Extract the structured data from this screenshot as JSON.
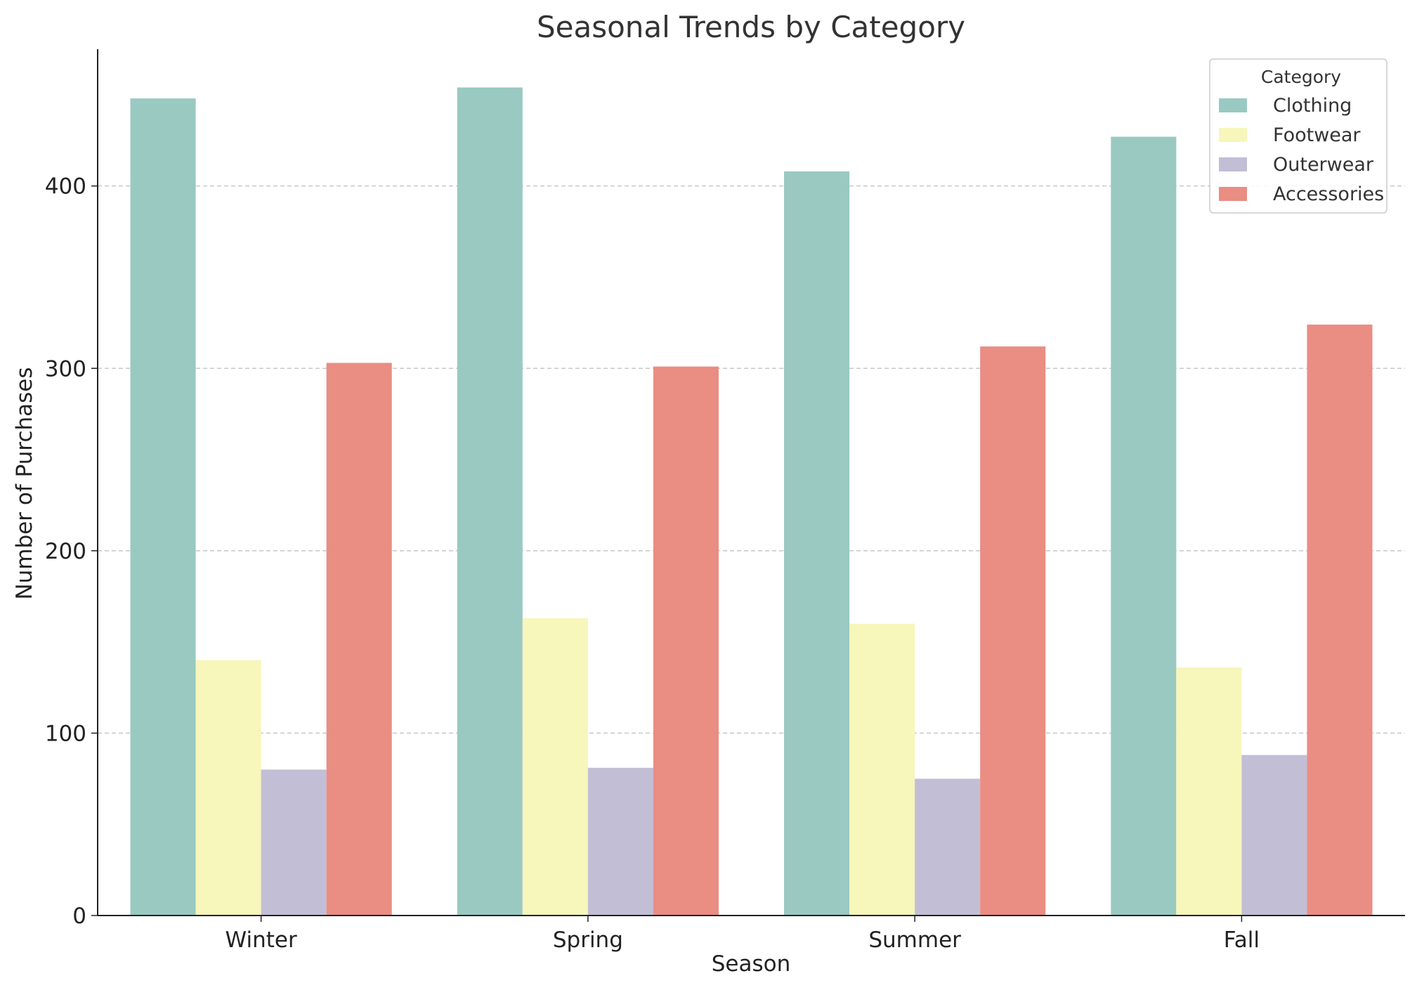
{
  "chart_data": {
    "type": "bar",
    "title": "Seasonal Trends by Category",
    "xlabel": "Season",
    "ylabel": "Number of Purchases",
    "categories": [
      "Winter",
      "Spring",
      "Summer",
      "Fall"
    ],
    "series": [
      {
        "name": "Clothing",
        "color": "#99c9c1",
        "values": [
          448,
          454,
          408,
          427
        ]
      },
      {
        "name": "Footwear",
        "color": "#f7f6bb",
        "values": [
          140,
          163,
          160,
          136
        ]
      },
      {
        "name": "Outerwear",
        "color": "#c2bed6",
        "values": [
          80,
          81,
          75,
          88
        ]
      },
      {
        "name": "Accessories",
        "color": "#ea8d83",
        "values": [
          303,
          301,
          312,
          324
        ]
      }
    ],
    "ylim": [
      0,
      475
    ],
    "yticks": [
      0,
      100,
      200,
      300,
      400
    ],
    "grid": "y-dashed",
    "legend": {
      "title": "Category",
      "position": "top-right"
    }
  }
}
